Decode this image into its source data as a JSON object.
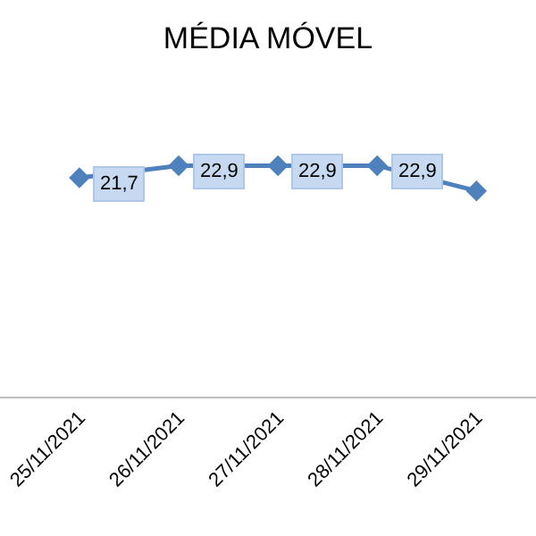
{
  "chart_data": {
    "type": "line",
    "title": "MÉDIA MÓVEL",
    "categories": [
      "25/11/2021",
      "26/11/2021",
      "27/11/2021",
      "28/11/2021",
      "29/11/2021"
    ],
    "series": [
      {
        "color": "#4f81bd",
        "values": [
          21.7,
          22.9,
          22.9,
          22.9,
          20.4
        ],
        "value_labels": [
          "21,7",
          "22,9",
          "22,9",
          "22,9",
          null
        ]
      }
    ],
    "tick_labels": "x",
    "legend": false,
    "marker": "diamond",
    "line_style": "solid"
  }
}
